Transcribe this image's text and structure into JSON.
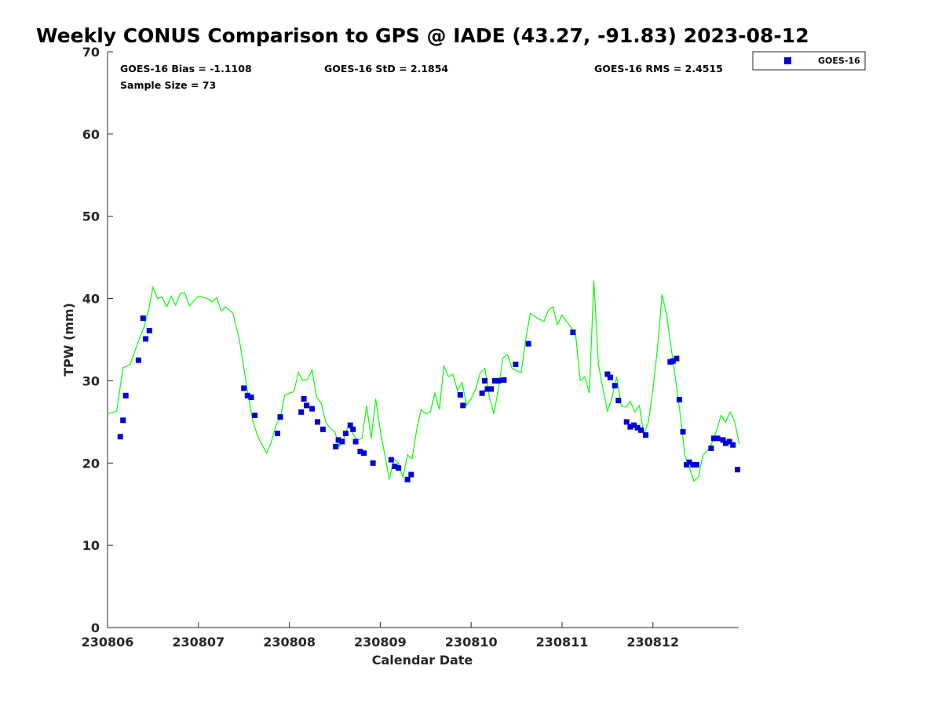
{
  "chart_data": {
    "type": "scatter",
    "title": "Weekly CONUS Comparison to GPS @ IADE (43.27, -91.83) 2023-08-12",
    "xlabel": "Calendar Date",
    "ylabel": "TPW (mm)",
    "xlim": [
      "230806",
      "230813"
    ],
    "ylim": [
      0,
      70
    ],
    "x_ticks": [
      "230806",
      "230807",
      "230808",
      "230809",
      "230810",
      "230811",
      "230812"
    ],
    "y_ticks": [
      0,
      10,
      20,
      30,
      40,
      50,
      60,
      70
    ],
    "grid": false,
    "legend_position": "top-right, outside plot",
    "stats": {
      "bias": "GOES-16 Bias = -1.1108",
      "std": "GOES-16 StD = 2.1854",
      "rms": "GOES-16 RMS = 2.4515",
      "sample": "Sample Size = 73"
    },
    "series": [
      {
        "name": "",
        "kind": "line",
        "color": "#00ff00",
        "x": [
          6.0,
          6.1,
          6.17,
          6.25,
          6.33,
          6.4,
          6.45,
          6.5,
          6.55,
          6.6,
          6.65,
          6.7,
          6.75,
          6.8,
          6.85,
          6.9,
          7.0,
          7.1,
          7.15,
          7.2,
          7.25,
          7.3,
          7.38,
          7.45,
          7.5,
          7.55,
          7.6,
          7.65,
          7.7,
          7.75,
          7.8,
          7.85,
          7.9,
          7.95,
          8.0,
          8.05,
          8.1,
          8.15,
          8.2,
          8.25,
          8.3,
          8.35,
          8.4,
          8.45,
          8.5,
          8.55,
          8.6,
          8.65,
          8.7,
          8.75,
          8.8,
          8.85,
          8.9,
          8.95,
          9.0,
          9.05,
          9.1,
          9.15,
          9.2,
          9.25,
          9.3,
          9.35,
          9.4,
          9.45,
          9.5,
          9.55,
          9.6,
          9.65,
          9.7,
          9.75,
          9.8,
          9.85,
          9.9,
          9.95,
          10.0,
          10.05,
          10.1,
          10.15,
          10.2,
          10.25,
          10.3,
          10.35,
          10.4,
          10.45,
          10.5,
          10.55,
          10.6,
          10.65,
          10.7,
          10.75,
          10.8,
          10.85,
          10.9,
          10.95,
          11.0,
          11.05,
          11.1,
          11.15,
          11.2,
          11.25,
          11.3,
          11.35,
          11.4,
          11.45,
          11.5,
          11.55,
          11.6,
          11.65,
          11.7,
          11.75,
          11.8,
          11.85,
          11.9,
          11.95,
          12.0,
          12.05,
          12.1,
          12.15,
          12.2,
          12.25,
          12.3,
          12.35,
          12.4,
          12.45,
          12.5,
          12.55,
          12.6,
          12.65,
          12.7,
          12.75,
          12.8,
          12.85,
          12.9,
          12.95
        ],
        "values": [
          26.0,
          26.3,
          31.6,
          32.0,
          34.5,
          36.5,
          38.5,
          41.4,
          40.0,
          40.2,
          39.0,
          40.3,
          39.2,
          40.6,
          40.7,
          39.1,
          40.3,
          40.0,
          39.6,
          40.1,
          38.5,
          39.0,
          38.2,
          35.0,
          31.5,
          28.0,
          25.0,
          23.3,
          22.2,
          21.2,
          22.5,
          24.5,
          25.5,
          28.3,
          28.5,
          28.7,
          31.0,
          30.0,
          30.2,
          31.3,
          28.0,
          27.3,
          25.0,
          24.2,
          23.8,
          22.0,
          23.0,
          24.6,
          23.5,
          22.8,
          23.0,
          27.0,
          23.0,
          27.8,
          24.0,
          21.0,
          18.0,
          20.5,
          20.0,
          18.3,
          21.0,
          20.5,
          24.0,
          26.5,
          26.0,
          26.2,
          28.5,
          26.5,
          31.8,
          30.5,
          30.8,
          28.8,
          29.8,
          27.0,
          27.8,
          29.0,
          31.0,
          31.5,
          28.0,
          26.0,
          29.0,
          32.8,
          33.2,
          31.5,
          31.2,
          31.0,
          35.0,
          38.2,
          37.8,
          37.5,
          37.2,
          38.6,
          39.0,
          36.8,
          38.0,
          37.2,
          36.5,
          35.5,
          30.0,
          30.5,
          28.5,
          42.2,
          32.0,
          29.0,
          26.3,
          28.0,
          30.5,
          27.0,
          26.8,
          27.5,
          26.2,
          27.0,
          23.5,
          25.0,
          29.0,
          34.0,
          40.5,
          38.0,
          34.0,
          30.0,
          26.0,
          21.0,
          19.5,
          17.8,
          18.3,
          21.0,
          21.5,
          22.5,
          24.0,
          25.8,
          25.0,
          26.2,
          25.0,
          22.3
        ]
      },
      {
        "name": "GOES-16",
        "kind": "marker",
        "color": "#0000dd",
        "x": [
          6.14,
          6.17,
          6.2,
          6.34,
          6.39,
          6.42,
          6.46,
          7.5,
          7.54,
          7.58,
          7.62,
          7.87,
          7.9,
          8.13,
          8.16,
          8.19,
          8.25,
          8.31,
          8.37,
          8.51,
          8.54,
          8.58,
          8.62,
          8.67,
          8.7,
          8.73,
          8.78,
          8.82,
          8.92,
          9.12,
          9.16,
          9.2,
          9.3,
          9.34,
          9.88,
          9.91,
          10.12,
          10.15,
          10.18,
          10.22,
          10.26,
          10.3,
          10.36,
          10.49,
          10.63,
          11.12,
          11.5,
          11.53,
          11.58,
          11.62,
          11.71,
          11.75,
          11.79,
          11.83,
          11.87,
          11.92,
          12.19,
          12.22,
          12.26,
          12.29,
          12.33,
          12.37,
          12.4,
          12.44,
          12.48,
          12.64,
          12.67,
          12.71,
          12.77,
          12.8,
          12.84,
          12.88,
          12.93
        ],
        "values": [
          23.2,
          25.2,
          28.2,
          32.5,
          37.6,
          35.1,
          36.1,
          29.1,
          28.2,
          28.0,
          25.8,
          23.6,
          25.6,
          26.2,
          27.8,
          27.0,
          26.6,
          25.0,
          24.1,
          22.0,
          22.8,
          22.6,
          23.6,
          24.6,
          24.1,
          22.6,
          21.4,
          21.2,
          20.0,
          20.4,
          19.6,
          19.4,
          18.0,
          18.6,
          28.3,
          27.0,
          28.5,
          30.0,
          29.0,
          29.0,
          30.0,
          30.0,
          30.1,
          32.0,
          34.5,
          35.9,
          30.8,
          30.4,
          29.4,
          27.6,
          25.0,
          24.4,
          24.6,
          24.3,
          24.0,
          23.4,
          32.3,
          32.4,
          32.7,
          27.7,
          23.8,
          19.8,
          20.1,
          19.8,
          19.8,
          21.8,
          23.0,
          23.0,
          22.8,
          22.4,
          22.6,
          22.2,
          19.2
        ]
      }
    ]
  }
}
